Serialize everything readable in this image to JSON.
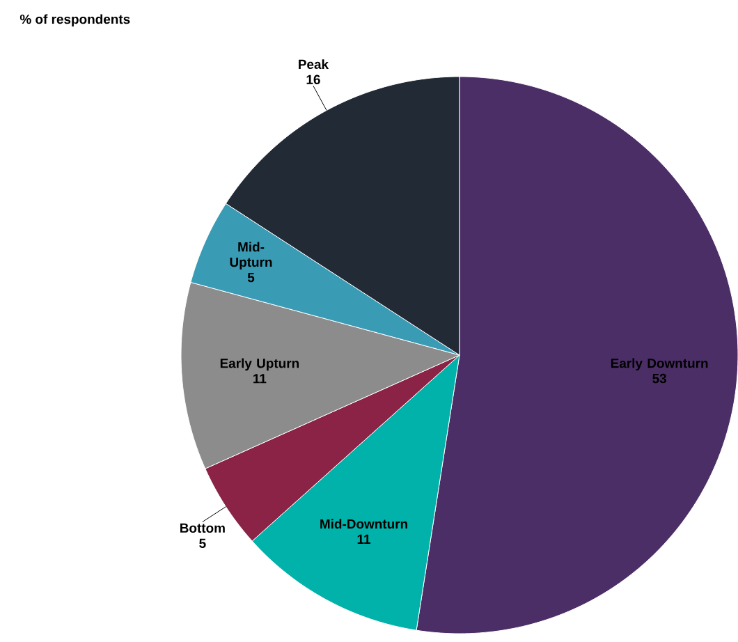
{
  "chart_data": {
    "type": "pie",
    "title": "% of respondents",
    "categories": [
      "Early Downturn",
      "Mid-Downturn",
      "Bottom",
      "Early Upturn",
      "Mid-Upturn",
      "Peak"
    ],
    "values": [
      53,
      11,
      5,
      11,
      5,
      16
    ],
    "colors": [
      "#4b2e66",
      "#00b2a9",
      "#8a2345",
      "#8c8c8c",
      "#3a9bb5",
      "#222a35"
    ],
    "value_labels": [
      "53",
      "11",
      "5",
      "11",
      "5",
      "16"
    ]
  }
}
